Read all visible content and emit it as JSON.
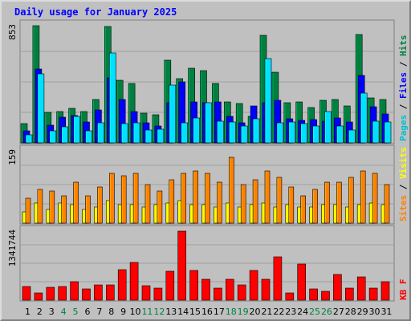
{
  "chart_data": {
    "type": "bar",
    "title": "Daily usage for January 2025",
    "days": [
      "1",
      "2",
      "3",
      "4",
      "5",
      "6",
      "7",
      "8",
      "9",
      "10",
      "11",
      "12",
      "13",
      "14",
      "15",
      "16",
      "17",
      "18",
      "19",
      "20",
      "21",
      "22",
      "23",
      "24",
      "25",
      "26",
      "27",
      "28",
      "29",
      "30",
      "31"
    ],
    "weekend_days": [
      "4",
      "5",
      "11",
      "12",
      "18",
      "19",
      "25",
      "26"
    ],
    "colors": {
      "hits": "#008040",
      "files": "#0000ff",
      "pages": "#00e0ff",
      "visits": "#ffff00",
      "sites": "#ff8000",
      "kbytes": "#ff0000",
      "weekend_label": "#008040",
      "weekday_label": "#000000",
      "title": "#0000ff"
    },
    "panels": [
      {
        "id": "hits-panel",
        "ymax_label": "853",
        "ymax": 853,
        "legend": [
          {
            "label": "Pages",
            "color": "#00c0d0"
          },
          {
            "label": " / ",
            "color": "#000000"
          },
          {
            "label": "Files",
            "color": "#0000ff"
          },
          {
            "label": " / ",
            "color": "#000000"
          },
          {
            "label": "Hits",
            "color": "#008040"
          }
        ],
        "series": [
          {
            "name": "Hits",
            "key": "hits",
            "values": [
              140,
              853,
              220,
              230,
              250,
              230,
              315,
              845,
              455,
              430,
              215,
              205,
              600,
              470,
              545,
              525,
              430,
              300,
              285,
              195,
              780,
              515,
              295,
              300,
              255,
              310,
              315,
              270,
              790,
              330,
              315
            ]
          },
          {
            "name": "Files",
            "key": "files",
            "values": [
              85,
              535,
              130,
              185,
              200,
              150,
              240,
              475,
              315,
              225,
              145,
              120,
              290,
              445,
              300,
              290,
              300,
              190,
              145,
              270,
              290,
              310,
              175,
              165,
              170,
              160,
              180,
              150,
              490,
              260,
              210
            ]
          },
          {
            "name": "Pages",
            "key": "pages",
            "values": [
              60,
              505,
              85,
              115,
              195,
              90,
              145,
              655,
              140,
              145,
              95,
              100,
              420,
              145,
              180,
              290,
              160,
              150,
              125,
              175,
              615,
              145,
              150,
              140,
              120,
              225,
              120,
              95,
              365,
              155,
              150
            ]
          }
        ]
      },
      {
        "id": "visits-panel",
        "ymax_label": "159",
        "ymax": 159,
        "legend": [
          {
            "label": "Sites",
            "color": "#ff8000"
          },
          {
            "label": " / ",
            "color": "#000000"
          },
          {
            "label": "Visits",
            "color": "#ffff00"
          }
        ],
        "series": [
          {
            "name": "Visits",
            "key": "visits",
            "values": [
              25,
              45,
              30,
              45,
              40,
              30,
              35,
              50,
              40,
              40,
              35,
              40,
              45,
              50,
              40,
              40,
              35,
              45,
              35,
              40,
              45,
              35,
              40,
              35,
              35,
              40,
              40,
              35,
              40,
              45,
              40
            ]
          },
          {
            "name": "Sites",
            "key": "sites",
            "values": [
              55,
              75,
              70,
              60,
              90,
              60,
              80,
              110,
              105,
              110,
              85,
              70,
              95,
              110,
              115,
              110,
              90,
              145,
              85,
              95,
              115,
              100,
              80,
              60,
              75,
              90,
              90,
              100,
              115,
              110,
              85
            ]
          }
        ]
      },
      {
        "id": "kbytes-panel",
        "ymax_label": "1341744",
        "ymax": 1341744,
        "legend": [
          {
            "label": "KB F",
            "color": "#ff0000"
          }
        ],
        "series": [
          {
            "name": "KB F",
            "key": "kbytes",
            "values": [
              260000,
              135000,
              245000,
              260000,
              360000,
              225000,
              300000,
              300000,
              590000,
              740000,
              285000,
              240000,
              560000,
              1341744,
              570000,
              400000,
              230000,
              400000,
              300000,
              575000,
              400000,
              850000,
              135000,
              705000,
              225000,
              175000,
              505000,
              240000,
              450000,
              230000,
              360000
            ]
          }
        ]
      }
    ]
  }
}
